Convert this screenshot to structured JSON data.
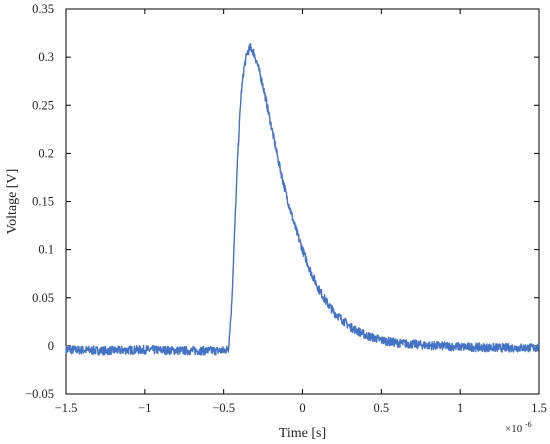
{
  "chart_data": {
    "type": "line",
    "title": "",
    "xlabel": "Time [s]",
    "ylabel": "Voltage [V]",
    "x_multiplier_label": "×10",
    "x_multiplier_exponent": "-6",
    "xlim": [
      -1.5,
      1.5
    ],
    "ylim": [
      -0.05,
      0.35
    ],
    "x_ticks": [
      "−1.5",
      "−1",
      "−0.5",
      "0",
      "0.5",
      "1",
      "1.5"
    ],
    "y_ticks": [
      "−0.05",
      "0",
      "0.05",
      "0.1",
      "0.15",
      "0.2",
      "0.25",
      "0.3",
      "0.35"
    ],
    "grid": false,
    "series": [
      {
        "line_color": "#4472C4",
        "points": [
          [
            -1.5,
            -0.004
          ],
          [
            -1.25,
            -0.005
          ],
          [
            -1.0,
            -0.004
          ],
          [
            -0.75,
            -0.005
          ],
          [
            -0.5,
            -0.005
          ],
          [
            -0.47,
            -0.003
          ],
          [
            -0.45,
            0.04
          ],
          [
            -0.43,
            0.12
          ],
          [
            -0.41,
            0.2
          ],
          [
            -0.39,
            0.26
          ],
          [
            -0.37,
            0.29
          ],
          [
            -0.35,
            0.305
          ],
          [
            -0.33,
            0.31
          ],
          [
            -0.31,
            0.305
          ],
          [
            -0.29,
            0.295
          ],
          [
            -0.25,
            0.27
          ],
          [
            -0.2,
            0.23
          ],
          [
            -0.15,
            0.19
          ],
          [
            -0.1,
            0.155
          ],
          [
            -0.05,
            0.125
          ],
          [
            0.0,
            0.1
          ],
          [
            0.05,
            0.078
          ],
          [
            0.1,
            0.06
          ],
          [
            0.15,
            0.046
          ],
          [
            0.2,
            0.035
          ],
          [
            0.3,
            0.02
          ],
          [
            0.4,
            0.011
          ],
          [
            0.5,
            0.006
          ],
          [
            0.6,
            0.003
          ],
          [
            0.8,
            0.0005
          ],
          [
            1.0,
            -0.001
          ],
          [
            1.25,
            -0.002
          ],
          [
            1.5,
            -0.002
          ]
        ]
      }
    ]
  }
}
